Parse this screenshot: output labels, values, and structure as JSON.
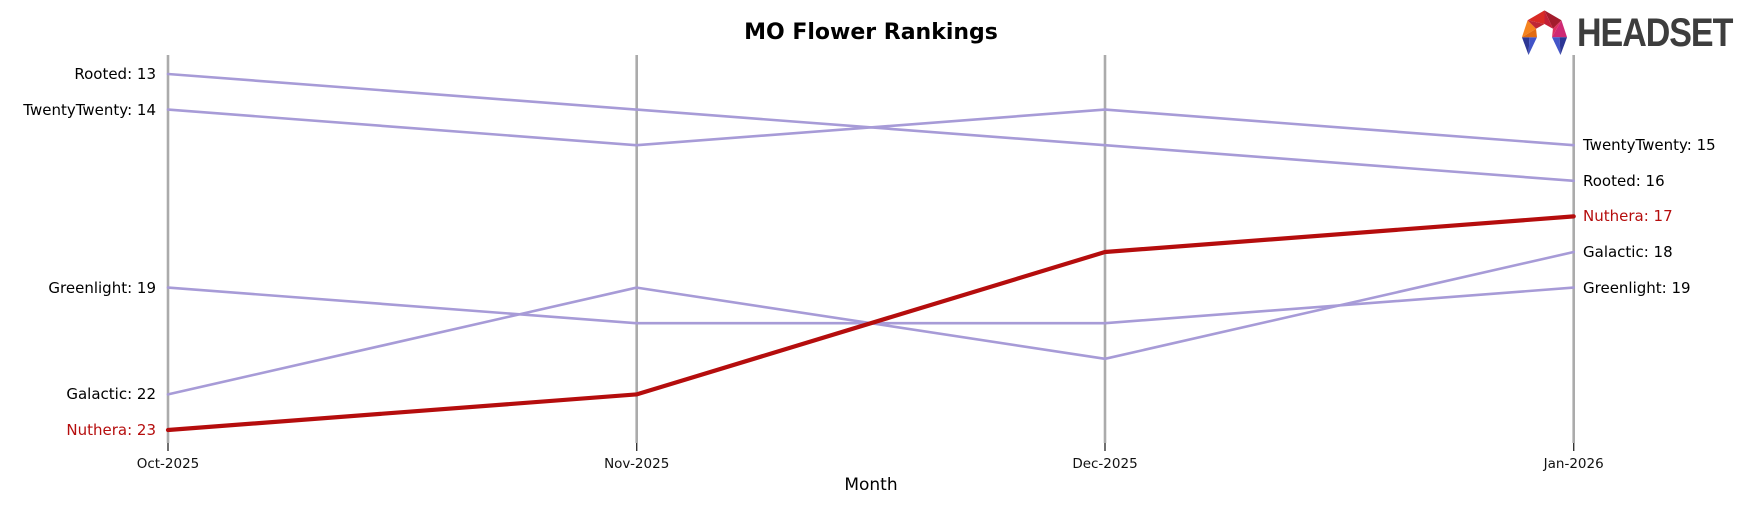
{
  "logo": {
    "text": "HEADSET"
  },
  "colors": {
    "line_default": "#a79bd7",
    "line_highlight": "#b50d0d",
    "axis": "#ababab",
    "tick": "#333333",
    "label_default": "#000000",
    "label_highlight": "#b50d0d"
  },
  "chart_data": {
    "type": "line",
    "subtype": "bump-ranking",
    "title": "MO Flower Rankings",
    "xlabel": "Month",
    "x": [
      "Oct-2025",
      "Nov-2025",
      "Dec-2025",
      "Jan-2026"
    ],
    "y_axis": {
      "inverted": true,
      "range": [
        13,
        23
      ],
      "unit": "rank"
    },
    "grid": false,
    "legend_position": "none",
    "series": [
      {
        "name": "Rooted",
        "values": [
          13,
          14,
          15,
          16
        ],
        "label_left": "Rooted: 13",
        "label_right": "Rooted: 16",
        "highlight": false
      },
      {
        "name": "TwentyTwenty",
        "values": [
          14,
          15,
          14,
          15
        ],
        "label_left": "TwentyTwenty: 14",
        "label_right": "TwentyTwenty: 15",
        "highlight": false
      },
      {
        "name": "Greenlight",
        "values": [
          19,
          20,
          20,
          19
        ],
        "label_left": "Greenlight: 19",
        "label_right": "Greenlight: 19",
        "highlight": false
      },
      {
        "name": "Galactic",
        "values": [
          22,
          19,
          21,
          18
        ],
        "label_left": "Galactic: 22",
        "label_right": "Galactic: 18",
        "highlight": false
      },
      {
        "name": "Nuthera",
        "values": [
          23,
          22,
          18,
          17
        ],
        "label_left": "Nuthera: 23",
        "label_right": "Nuthera: 17",
        "highlight": true
      }
    ]
  }
}
